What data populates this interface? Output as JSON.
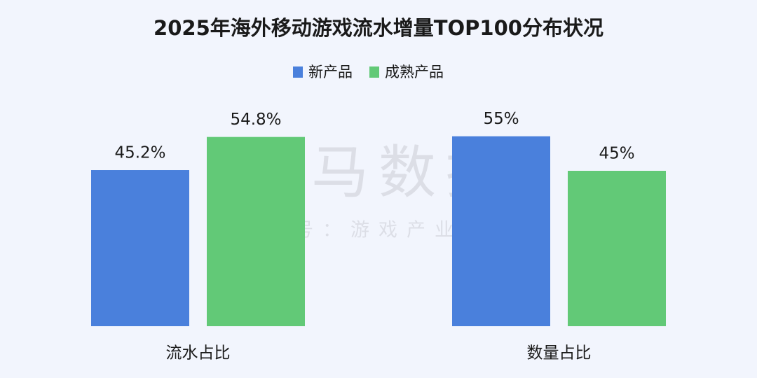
{
  "chart_data": {
    "type": "bar",
    "title": "2025年海外移动游戏流水增量TOP100分布状况",
    "categories": [
      "流水占比",
      "数量占比"
    ],
    "series": [
      {
        "name": "新产品",
        "color": "#4a80dc",
        "values": [
          45.2,
          55
        ],
        "value_labels": [
          "45.2%",
          "55%"
        ]
      },
      {
        "name": "成熟产品",
        "color": "#62c977",
        "values": [
          54.8,
          45
        ],
        "value_labels": [
          "54.8%",
          "45%"
        ]
      }
    ],
    "ylim": [
      0,
      60
    ],
    "legend": "top",
    "watermark": {
      "main": "伽马数据",
      "sub": "微信号：游戏产业报告"
    }
  }
}
